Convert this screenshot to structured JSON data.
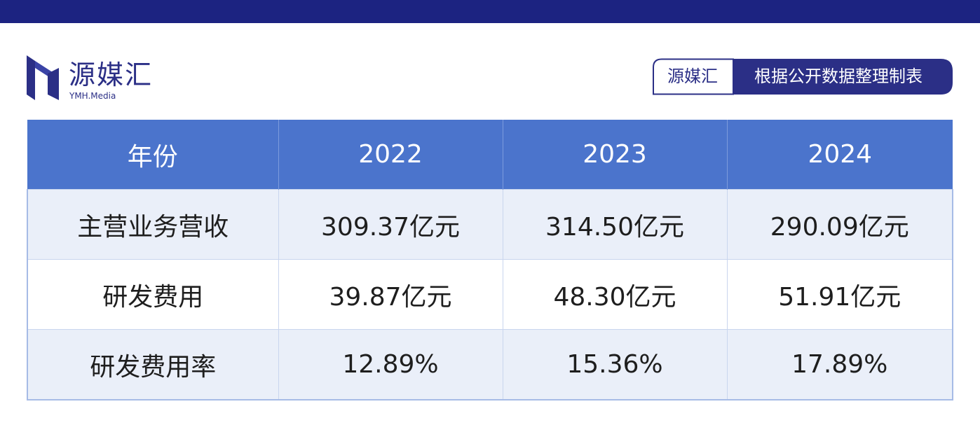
{
  "logo": {
    "name": "源媒汇",
    "sub": "YMH.Media"
  },
  "source_tag": {
    "brand": "源媒汇",
    "text": "根据公开数据整理制表"
  },
  "colors": {
    "top_bar": "#1c2381",
    "header": "#4b74cc",
    "row_shade": "#eaeff9",
    "brand": "#2b2f86"
  },
  "chart_data": {
    "type": "table",
    "columns": [
      "年份",
      "2022",
      "2023",
      "2024"
    ],
    "rows": [
      [
        "主营业务营收",
        "309.37亿元",
        "314.50亿元",
        "290.09亿元"
      ],
      [
        "研发费用",
        "39.87亿元",
        "48.30亿元",
        "51.91亿元"
      ],
      [
        "研发费用率",
        "12.89%",
        "15.36%",
        "17.89%"
      ]
    ]
  }
}
